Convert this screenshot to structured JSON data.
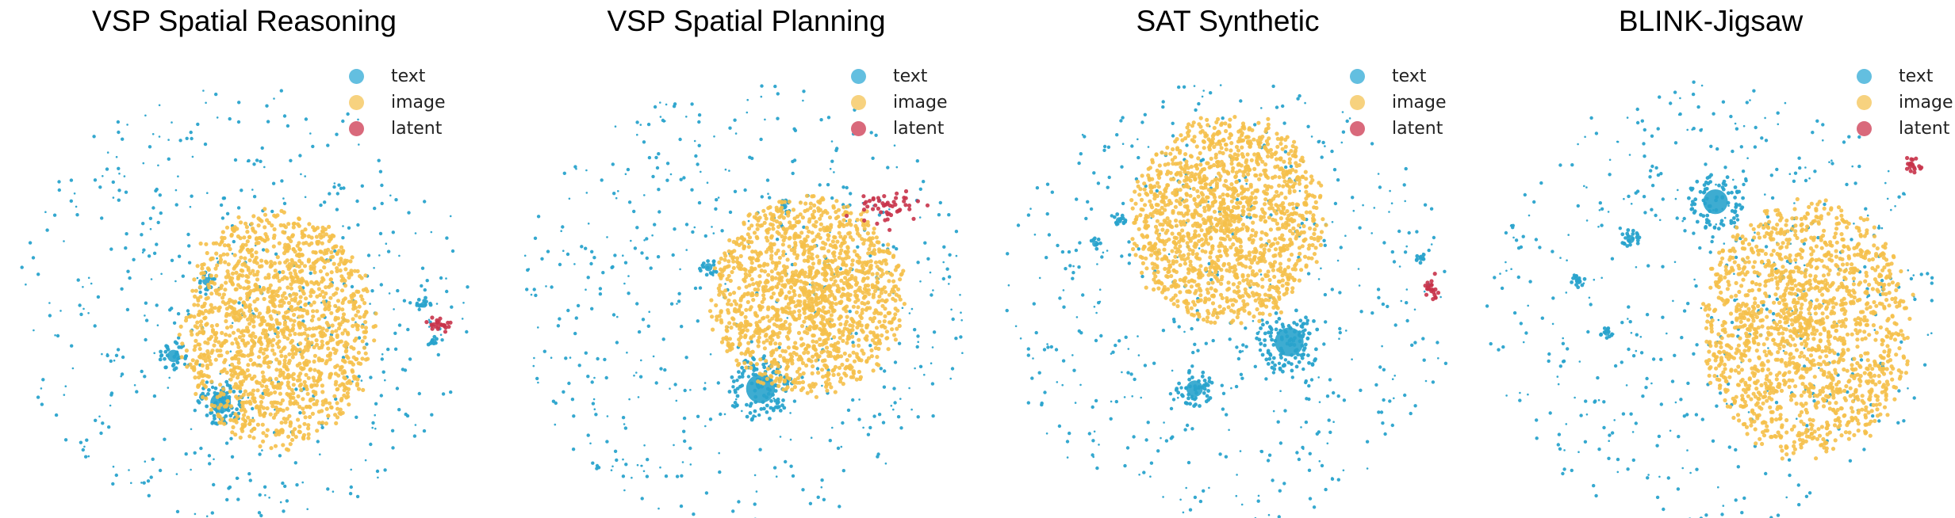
{
  "chart_data": [
    {
      "type": "scatter",
      "title": "VSP Spatial Reasoning",
      "legend": "top-right",
      "series": [
        {
          "name": "text",
          "color": "#29a3cc"
        },
        {
          "name": "image",
          "color": "#f5c04a"
        },
        {
          "name": "latent",
          "color": "#c8334a"
        }
      ],
      "clusters": {
        "image": [
          {
            "x": 0.57,
            "y": 0.6,
            "rx": 0.2,
            "ry": 0.25,
            "n": 1500
          }
        ],
        "latent": [
          {
            "x": 0.91,
            "y": 0.59,
            "rx": 0.018,
            "ry": 0.012,
            "n": 25
          }
        ],
        "text_blobs": [
          {
            "x": 0.35,
            "y": 0.66,
            "r": 0.03,
            "n": 30
          },
          {
            "x": 0.45,
            "y": 0.76,
            "r": 0.05,
            "n": 70
          },
          {
            "x": 0.42,
            "y": 0.5,
            "r": 0.02,
            "n": 15
          },
          {
            "x": 0.88,
            "y": 0.55,
            "r": 0.015,
            "n": 12
          },
          {
            "x": 0.9,
            "y": 0.63,
            "r": 0.012,
            "n": 8
          }
        ]
      }
    },
    {
      "type": "scatter",
      "title": "VSP Spatial Planning",
      "legend": "top-right",
      "series": [
        {
          "name": "text",
          "color": "#29a3cc"
        },
        {
          "name": "image",
          "color": "#f5c04a"
        },
        {
          "name": "latent",
          "color": "#c8334a"
        }
      ],
      "clusters": {
        "image": [
          {
            "x": 0.63,
            "y": 0.53,
            "rx": 0.2,
            "ry": 0.21,
            "n": 1500
          }
        ],
        "latent": [
          {
            "x": 0.8,
            "y": 0.34,
            "rx": 0.05,
            "ry": 0.025,
            "n": 50
          }
        ],
        "text_blobs": [
          {
            "x": 0.53,
            "y": 0.73,
            "r": 0.07,
            "n": 110
          },
          {
            "x": 0.42,
            "y": 0.47,
            "r": 0.02,
            "n": 15
          },
          {
            "x": 0.58,
            "y": 0.34,
            "r": 0.015,
            "n": 10
          }
        ]
      }
    },
    {
      "type": "scatter",
      "title": "SAT Synthetic",
      "legend": "top-right",
      "series": [
        {
          "name": "text",
          "color": "#29a3cc"
        },
        {
          "name": "image",
          "color": "#f5c04a"
        },
        {
          "name": "latent",
          "color": "#c8334a"
        }
      ],
      "clusters": {
        "image": [
          {
            "x": 0.5,
            "y": 0.37,
            "rx": 0.2,
            "ry": 0.22,
            "n": 1500
          }
        ],
        "latent": [
          {
            "x": 0.93,
            "y": 0.52,
            "rx": 0.012,
            "ry": 0.018,
            "n": 25
          }
        ],
        "text_blobs": [
          {
            "x": 0.63,
            "y": 0.63,
            "r": 0.07,
            "n": 110
          },
          {
            "x": 0.43,
            "y": 0.73,
            "r": 0.04,
            "n": 50
          },
          {
            "x": 0.27,
            "y": 0.37,
            "r": 0.015,
            "n": 12
          },
          {
            "x": 0.22,
            "y": 0.42,
            "r": 0.012,
            "n": 8
          },
          {
            "x": 0.91,
            "y": 0.45,
            "r": 0.012,
            "n": 8
          }
        ]
      }
    },
    {
      "type": "scatter",
      "title": "BLINK-Jigsaw",
      "legend": "top-right",
      "series": [
        {
          "name": "text",
          "color": "#29a3cc"
        },
        {
          "name": "image",
          "color": "#f5c04a"
        },
        {
          "name": "latent",
          "color": "#c8334a"
        }
      ],
      "clusters": {
        "image": [
          {
            "x": 0.7,
            "y": 0.6,
            "rx": 0.22,
            "ry": 0.27,
            "n": 1600
          }
        ],
        "latent": [
          {
            "x": 0.93,
            "y": 0.25,
            "rx": 0.015,
            "ry": 0.012,
            "n": 20
          }
        ],
        "text_blobs": [
          {
            "x": 0.51,
            "y": 0.33,
            "r": 0.06,
            "n": 80
          },
          {
            "x": 0.33,
            "y": 0.41,
            "r": 0.02,
            "n": 20
          },
          {
            "x": 0.22,
            "y": 0.5,
            "r": 0.015,
            "n": 12
          },
          {
            "x": 0.28,
            "y": 0.61,
            "r": 0.015,
            "n": 12
          }
        ]
      }
    }
  ]
}
